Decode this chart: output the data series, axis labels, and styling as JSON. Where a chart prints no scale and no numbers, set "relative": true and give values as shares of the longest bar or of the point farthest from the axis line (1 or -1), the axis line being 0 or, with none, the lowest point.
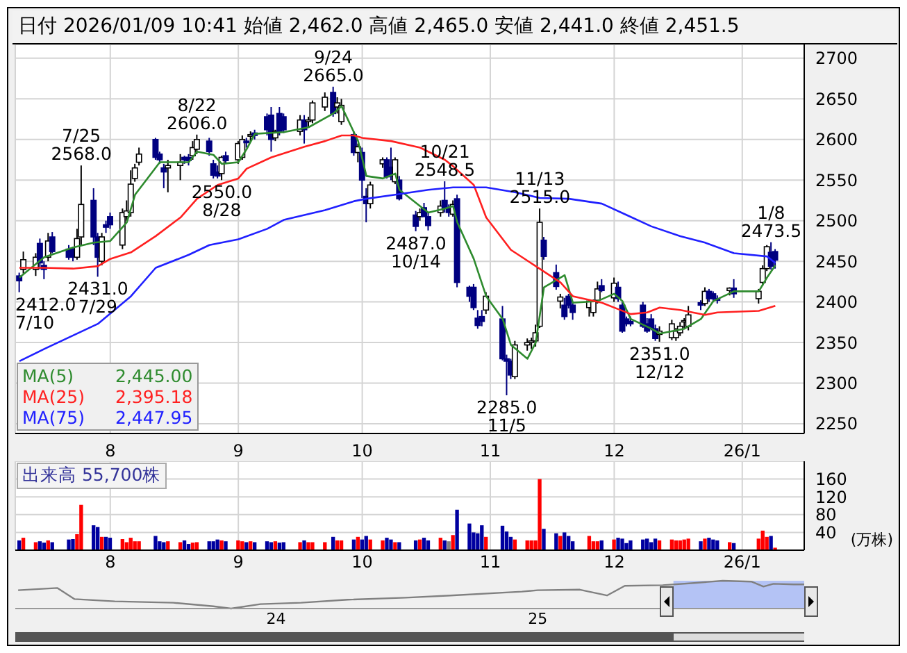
{
  "chart_data": [
    {
      "type": "candlestick",
      "title": "日付 2026/01/09 10:41 始値 2,462.0 高値 2,465.0 安値 2,441.0 終値 2,451.5",
      "x": [
        "2025-07-10",
        "2025-07-11",
        "2025-07-14",
        "2025-07-15",
        "2025-07-16",
        "2025-07-17",
        "2025-07-18",
        "2025-07-22",
        "2025-07-23",
        "2025-07-24",
        "2025-07-25",
        "2025-07-28",
        "2025-07-29",
        "2025-07-30",
        "2025-07-31",
        "2025-08-01",
        "2025-08-04",
        "2025-08-05",
        "2025-08-06",
        "2025-08-07",
        "2025-08-08",
        "2025-08-12",
        "2025-08-13",
        "2025-08-14",
        "2025-08-15",
        "2025-08-18",
        "2025-08-19",
        "2025-08-20",
        "2025-08-21",
        "2025-08-22",
        "2025-08-25",
        "2025-08-26",
        "2025-08-27",
        "2025-08-28",
        "2025-08-29",
        "2025-09-01",
        "2025-09-02",
        "2025-09-03",
        "2025-09-04",
        "2025-09-05",
        "2025-09-08",
        "2025-09-09",
        "2025-09-10",
        "2025-09-11",
        "2025-09-12",
        "2025-09-16",
        "2025-09-17",
        "2025-09-18",
        "2025-09-19",
        "2025-09-22",
        "2025-09-24",
        "2025-09-25",
        "2025-09-26",
        "2025-09-29",
        "2025-09-30",
        "2025-10-01",
        "2025-10-02",
        "2025-10-03",
        "2025-10-06",
        "2025-10-07",
        "2025-10-08",
        "2025-10-09",
        "2025-10-10",
        "2025-10-14",
        "2025-10-15",
        "2025-10-16",
        "2025-10-17",
        "2025-10-20",
        "2025-10-21",
        "2025-10-22",
        "2025-10-23",
        "2025-10-24",
        "2025-10-27",
        "2025-10-28",
        "2025-10-29",
        "2025-10-30",
        "2025-10-31",
        "2025-11-04",
        "2025-11-05",
        "2025-11-06",
        "2025-11-07",
        "2025-11-10",
        "2025-11-11",
        "2025-11-12",
        "2025-11-13",
        "2025-11-14",
        "2025-11-17",
        "2025-11-18",
        "2025-11-19",
        "2025-11-20",
        "2025-11-21",
        "2025-11-25",
        "2025-11-26",
        "2025-11-27",
        "2025-11-28",
        "2025-12-01",
        "2025-12-02",
        "2025-12-03",
        "2025-12-04",
        "2025-12-05",
        "2025-12-08",
        "2025-12-09",
        "2025-12-10",
        "2025-12-11",
        "2025-12-12",
        "2025-12-15",
        "2025-12-16",
        "2025-12-17",
        "2025-12-18",
        "2025-12-19",
        "2025-12-22",
        "2025-12-23",
        "2025-12-24",
        "2025-12-25",
        "2025-12-26",
        "2025-12-29",
        "2025-12-30",
        "2026-01-05",
        "2026-01-06",
        "2026-01-07",
        "2026-01-08",
        "2026-01-09"
      ],
      "ohlc": [
        [
          2432,
          2436,
          2412,
          2426
        ],
        [
          2440,
          2462,
          2435,
          2452
        ],
        [
          2440,
          2460,
          2432,
          2455
        ],
        [
          2472,
          2478,
          2440,
          2448
        ],
        [
          2445,
          2450,
          2428,
          2440
        ],
        [
          2455,
          2485,
          2450,
          2475
        ],
        [
          2480,
          2486,
          2460,
          2462
        ],
        [
          2465,
          2470,
          2452,
          2455
        ],
        [
          2465,
          2468,
          2450,
          2455
        ],
        [
          2455,
          2490,
          2452,
          2478
        ],
        [
          2480,
          2568,
          2470,
          2520
        ],
        [
          2525,
          2540,
          2470,
          2480
        ],
        [
          2480,
          2485,
          2431,
          2455
        ],
        [
          2450,
          2485,
          2445,
          2480
        ],
        [
          2495,
          2500,
          2485,
          2492
        ],
        [
          2505,
          2510,
          2490,
          2495
        ],
        [
          2470,
          2515,
          2465,
          2510
        ],
        [
          2505,
          2525,
          2500,
          2512
        ],
        [
          2510,
          2562,
          2505,
          2545
        ],
        [
          2552,
          2570,
          2548,
          2565
        ],
        [
          2572,
          2590,
          2568,
          2582
        ],
        [
          2600,
          2602,
          2575,
          2578
        ],
        [
          2582,
          2585,
          2570,
          2575
        ],
        [
          2565,
          2570,
          2540,
          2560
        ],
        [
          2565,
          2575,
          2535,
          2568
        ],
        [
          2568,
          2582,
          2550,
          2572
        ],
        [
          2578,
          2580,
          2570,
          2575
        ],
        [
          2578,
          2582,
          2568,
          2574
        ],
        [
          2580,
          2598,
          2575,
          2590
        ],
        [
          2588,
          2606,
          2582,
          2600
        ],
        [
          2598,
          2602,
          2580,
          2585
        ],
        [
          2570,
          2575,
          2552,
          2556
        ],
        [
          2560,
          2568,
          2552,
          2555
        ],
        [
          2558,
          2580,
          2550,
          2578
        ],
        [
          2580,
          2585,
          2570,
          2574
        ],
        [
          2575,
          2598,
          2570,
          2595
        ],
        [
          2578,
          2605,
          2575,
          2600
        ],
        [
          2598,
          2602,
          2590,
          2596
        ],
        [
          2604,
          2610,
          2598,
          2606
        ],
        [
          2608,
          2612,
          2600,
          2605
        ],
        [
          2628,
          2632,
          2605,
          2612
        ],
        [
          2630,
          2640,
          2585,
          2600
        ],
        [
          2602,
          2612,
          2598,
          2610
        ],
        [
          2632,
          2640,
          2605,
          2610
        ],
        [
          2628,
          2632,
          2608,
          2612
        ],
        [
          2610,
          2630,
          2605,
          2624
        ],
        [
          2624,
          2630,
          2595,
          2612
        ],
        [
          2622,
          2628,
          2615,
          2624
        ],
        [
          2624,
          2648,
          2620,
          2645
        ],
        [
          2640,
          2658,
          2635,
          2652
        ],
        [
          2658,
          2665,
          2628,
          2632
        ],
        [
          2640,
          2652,
          2632,
          2645
        ],
        [
          2622,
          2650,
          2618,
          2642
        ],
        [
          2606,
          2610,
          2580,
          2584
        ],
        [
          2584,
          2595,
          2572,
          2591
        ],
        [
          2584,
          2590,
          2528,
          2550
        ],
        [
          2530,
          2540,
          2498,
          2521
        ],
        [
          2521,
          2548,
          2515,
          2544
        ],
        [
          2570,
          2578,
          2565,
          2575
        ],
        [
          2575,
          2578,
          2552,
          2554
        ],
        [
          2566,
          2590,
          2550,
          2555
        ],
        [
          2548,
          2578,
          2545,
          2575
        ],
        [
          2550,
          2555,
          2525,
          2527
        ],
        [
          2507,
          2512,
          2487,
          2493
        ],
        [
          2505,
          2515,
          2500,
          2510
        ],
        [
          2516,
          2522,
          2505,
          2505
        ],
        [
          2505,
          2510,
          2488,
          2494
        ],
        [
          2510,
          2525,
          2505,
          2518
        ],
        [
          2525,
          2548.5,
          2510,
          2515
        ],
        [
          2515,
          2520,
          2505,
          2510
        ],
        [
          2508,
          2525,
          2505,
          2520
        ],
        [
          2527,
          2532,
          2418,
          2424
        ],
        [
          2418,
          2420,
          2400,
          2407
        ],
        [
          2418,
          2422,
          2390,
          2393
        ],
        [
          2380,
          2390,
          2367,
          2371
        ],
        [
          2382,
          2390,
          2370,
          2376
        ],
        [
          2390,
          2412,
          2385,
          2407
        ],
        [
          2379,
          2395,
          2328,
          2330
        ],
        [
          2330,
          2335,
          2285,
          2327
        ],
        [
          2327,
          2330,
          2305,
          2310
        ],
        [
          2308,
          2352,
          2305,
          2347
        ],
        [
          2347,
          2355,
          2340,
          2350
        ],
        [
          2350,
          2356,
          2342,
          2352
        ],
        [
          2352,
          2372,
          2345,
          2362
        ],
        [
          2370,
          2515,
          2368,
          2498
        ],
        [
          2476,
          2480,
          2452,
          2456
        ],
        [
          2436,
          2446,
          2415,
          2419
        ],
        [
          2401,
          2410,
          2392,
          2406
        ],
        [
          2396,
          2405,
          2378,
          2382
        ],
        [
          2407,
          2410,
          2392,
          2396
        ],
        [
          2396,
          2400,
          2378,
          2387
        ],
        [
          2393,
          2403,
          2382,
          2401
        ],
        [
          2387,
          2403,
          2382,
          2401
        ],
        [
          2402,
          2425,
          2398,
          2416
        ],
        [
          2420,
          2428,
          2412,
          2414
        ],
        [
          2405,
          2430,
          2400,
          2423
        ],
        [
          2418,
          2425,
          2400,
          2404
        ],
        [
          2396,
          2400,
          2362,
          2364
        ],
        [
          2379,
          2382,
          2370,
          2373
        ],
        [
          2376,
          2382,
          2370,
          2373
        ],
        [
          2396,
          2400,
          2368,
          2370
        ],
        [
          2373,
          2380,
          2362,
          2364
        ],
        [
          2379,
          2385,
          2365,
          2367
        ],
        [
          2367,
          2372,
          2352,
          2355
        ],
        [
          2360,
          2370,
          2351,
          2364
        ],
        [
          2356,
          2378,
          2353,
          2373
        ],
        [
          2356,
          2368,
          2352,
          2364
        ],
        [
          2362,
          2375,
          2358,
          2370
        ],
        [
          2376,
          2380,
          2368,
          2377
        ],
        [
          2370,
          2395,
          2365,
          2384
        ],
        [
          2399,
          2402,
          2390,
          2396
        ],
        [
          2398,
          2418,
          2395,
          2413
        ],
        [
          2413,
          2416,
          2400,
          2404
        ],
        [
          2410,
          2413,
          2400,
          2404
        ],
        [
          2404,
          2408,
          2398,
          2402
        ],
        [
          2414,
          2418,
          2408,
          2417
        ],
        [
          2417,
          2428,
          2405,
          2410
        ],
        [
          2404,
          2416,
          2398,
          2413
        ],
        [
          2424,
          2445,
          2420,
          2441
        ],
        [
          2441,
          2470,
          2438,
          2468
        ],
        [
          2461,
          2473.5,
          2440,
          2444
        ],
        [
          2462,
          2465,
          2441,
          2451.5
        ]
      ],
      "colors": [
        "#000080",
        "#ffffff",
        "#ffffff",
        "#000080",
        "#000080",
        "#ffffff",
        "#000080",
        "#000080",
        "#000080",
        "#ffffff",
        "#ffffff",
        "#000080",
        "#000080",
        "#ffffff",
        "#000080",
        "#000080",
        "#ffffff",
        "#ffffff",
        "#ffffff",
        "#ffffff",
        "#ffffff",
        "#000080",
        "#000080",
        "#000080",
        "#ffffff",
        "#ffffff",
        "#000080",
        "#000080",
        "#ffffff",
        "#ffffff",
        "#000080",
        "#000080",
        "#000080",
        "#ffffff",
        "#000080",
        "#ffffff",
        "#ffffff",
        "#000080",
        "#ffffff",
        "#000080",
        "#000080",
        "#000080",
        "#ffffff",
        "#000080",
        "#000080",
        "#ffffff",
        "#000080",
        "#ffffff",
        "#ffffff",
        "#ffffff",
        "#000080",
        "#ffffff",
        "#ffffff",
        "#000080",
        "#ffffff",
        "#000080",
        "#000080",
        "#ffffff",
        "#ffffff",
        "#000080",
        "#000080",
        "#ffffff",
        "#000080",
        "#000080",
        "#ffffff",
        "#000080",
        "#000080",
        "#ffffff",
        "#000080",
        "#000080",
        "#ffffff",
        "#000080",
        "#000080",
        "#000080",
        "#000080",
        "#000080",
        "#ffffff",
        "#000080",
        "#000080",
        "#000080",
        "#ffffff",
        "#ffffff",
        "#ffffff",
        "#ffffff",
        "#ffffff",
        "#000080",
        "#000080",
        "#ffffff",
        "#000080",
        "#000080",
        "#000080",
        "#ffffff",
        "#ffffff",
        "#ffffff",
        "#000080",
        "#ffffff",
        "#000080",
        "#000080",
        "#000080",
        "#000080",
        "#000080",
        "#000080",
        "#000080",
        "#000080",
        "#ffffff",
        "#ffffff",
        "#ffffff",
        "#ffffff",
        "#ffffff",
        "#ffffff",
        "#000080",
        "#ffffff",
        "#000080",
        "#000080",
        "#000080",
        "#ffffff",
        "#000080",
        "#ffffff",
        "#ffffff",
        "#ffffff",
        "#000080",
        "#000080"
      ],
      "series": [
        {
          "type": "line",
          "name": "MA(5)",
          "color": "#2e8b2e",
          "x": [
            "2025-07-10",
            "2025-07-16",
            "2025-07-23",
            "2025-07-28",
            "2025-08-01",
            "2025-08-05",
            "2025-08-07",
            "2025-08-13",
            "2025-08-20",
            "2025-08-22",
            "2025-08-26",
            "2025-08-28",
            "2025-09-01",
            "2025-09-03",
            "2025-09-05",
            "2025-09-12",
            "2025-09-18",
            "2025-09-24",
            "2025-09-26",
            "2025-09-30",
            "2025-10-02",
            "2025-10-06",
            "2025-10-09",
            "2025-10-10",
            "2025-10-15",
            "2025-10-17",
            "2025-10-21",
            "2025-10-23",
            "2025-10-24",
            "2025-10-28",
            "2025-10-31",
            "2025-11-04",
            "2025-11-06",
            "2025-11-10",
            "2025-11-12",
            "2025-11-14",
            "2025-11-19",
            "2025-11-21",
            "2025-11-27",
            "2025-12-01",
            "2025-12-03",
            "2025-12-05",
            "2025-12-10",
            "2025-12-12",
            "2025-12-18",
            "2025-12-22",
            "2025-12-25",
            "2025-12-30",
            "2026-01-05",
            "2026-01-07",
            "2026-01-09"
          ],
          "values": [
            2430,
            2455,
            2467,
            2473,
            2475,
            2498,
            2532,
            2572,
            2572,
            2585,
            2581,
            2570,
            2572,
            2588,
            2607,
            2609,
            2615,
            2632,
            2641,
            2598,
            2555,
            2552,
            2558,
            2538,
            2518,
            2510,
            2515,
            2518,
            2498,
            2453,
            2407,
            2379,
            2347,
            2330,
            2350,
            2418,
            2433,
            2399,
            2401,
            2410,
            2401,
            2379,
            2367,
            2361,
            2367,
            2379,
            2401,
            2413,
            2413,
            2430,
            2445.0
          ]
        },
        {
          "type": "line",
          "name": "MA(25)",
          "color": "#ff2020",
          "x": [
            "2025-07-10",
            "2025-07-16",
            "2025-07-23",
            "2025-07-29",
            "2025-08-01",
            "2025-08-06",
            "2025-08-12",
            "2025-08-18",
            "2025-08-22",
            "2025-08-27",
            "2025-09-01",
            "2025-09-03",
            "2025-09-09",
            "2025-09-17",
            "2025-09-22",
            "2025-09-26",
            "2025-09-29",
            "2025-10-01",
            "2025-10-08",
            "2025-10-15",
            "2025-10-21",
            "2025-10-23",
            "2025-10-28",
            "2025-10-31",
            "2025-11-06",
            "2025-11-12",
            "2025-11-18",
            "2025-11-21",
            "2025-11-28",
            "2025-12-02",
            "2025-12-05",
            "2025-12-09",
            "2025-12-12",
            "2025-12-17",
            "2025-12-23",
            "2025-12-26",
            "2026-01-05",
            "2026-01-09"
          ],
          "values": [
            2442,
            2442,
            2441,
            2444,
            2453,
            2461,
            2481,
            2504,
            2527,
            2544,
            2552,
            2564,
            2578,
            2591,
            2598,
            2605,
            2605,
            2602,
            2598,
            2590,
            2575,
            2567,
            2544,
            2504,
            2464,
            2444,
            2424,
            2407,
            2399,
            2391,
            2385,
            2387,
            2393,
            2390,
            2384,
            2387,
            2389,
            2395.18
          ]
        },
        {
          "type": "line",
          "name": "MA(75)",
          "color": "#2020ff",
          "x": [
            "2025-07-10",
            "2025-07-16",
            "2025-07-29",
            "2025-08-06",
            "2025-08-12",
            "2025-08-20",
            "2025-08-25",
            "2025-09-01",
            "2025-09-08",
            "2025-09-12",
            "2025-09-22",
            "2025-09-29",
            "2025-10-02",
            "2025-10-09",
            "2025-10-17",
            "2025-10-23",
            "2025-10-24",
            "2025-10-31",
            "2025-11-07",
            "2025-11-13",
            "2025-11-20",
            "2025-11-28",
            "2025-12-04",
            "2025-12-10",
            "2025-12-17",
            "2025-12-23",
            "2025-12-30",
            "2026-01-07",
            "2026-01-09"
          ],
          "values": [
            2327,
            2342,
            2373,
            2407,
            2442,
            2458,
            2470,
            2477,
            2490,
            2501,
            2513,
            2524,
            2527,
            2532,
            2538,
            2541,
            2541,
            2541,
            2535,
            2528,
            2527,
            2521,
            2507,
            2493,
            2481,
            2473,
            2460,
            2456,
            2447.95
          ]
        }
      ],
      "annotations": [
        "2,445.00",
        "2,395.18",
        "2,447.95",
        {
          "text": "7/25\n2568.0",
          "x": "2025-07-25",
          "y": 2568
        },
        {
          "text": "8/22\n2606.0",
          "x": "2025-08-22",
          "y": 2606
        },
        {
          "text": "9/24\n2665.0",
          "x": "2025-09-24",
          "y": 2665
        },
        {
          "text": "10/21\n2548.5",
          "x": "2025-10-21",
          "y": 2548.5
        },
        {
          "text": "11/13\n2515.0",
          "x": "2025-11-13",
          "y": 2515
        },
        {
          "text": "1/8\n2473.5",
          "x": "2026-01-08",
          "y": 2473.5
        },
        {
          "text": "2412.0\n7/10",
          "x": "2025-07-10",
          "y": 2412
        },
        {
          "text": "2431.0\n7/29",
          "x": "2025-07-29",
          "y": 2431
        },
        {
          "text": "2550.0\n8/28",
          "x": "2025-08-28",
          "y": 2550
        },
        {
          "text": "2487.0\n10/14",
          "x": "2025-10-14",
          "y": 2487
        },
        {
          "text": "2285.0\n11/5",
          "x": "2025-11-05",
          "y": 2285
        },
        {
          "text": "2351.0\n12/12",
          "x": "2025-12-12",
          "y": 2351
        }
      ],
      "xlim": [
        "2025-07-09",
        "2026-01-16"
      ],
      "xticks": [
        {
          "value": "2025-08-01",
          "label": "8"
        },
        {
          "value": "2025-09-01",
          "label": "9"
        },
        {
          "value": "2025-10-01",
          "label": "10"
        },
        {
          "value": "2025-11-01",
          "label": "11"
        },
        {
          "value": "2025-12-01",
          "label": "12"
        },
        {
          "value": "2026-01-01",
          "label": "26/1"
        }
      ],
      "ylim": [
        2238,
        2717
      ],
      "yticks": [
        2250,
        2300,
        2350,
        2400,
        2450,
        2500,
        2550,
        2600,
        2650,
        2700
      ],
      "grid": true,
      "legend": "bottom left"
    },
    {
      "type": "bar",
      "title": "出来高 55,700株",
      "ylabel": "(万株)",
      "x": [
        "2025-07-10",
        "2025-07-11",
        "2025-07-14",
        "2025-07-15",
        "2025-07-16",
        "2025-07-17",
        "2025-07-18",
        "2025-07-22",
        "2025-07-23",
        "2025-07-24",
        "2025-07-25",
        "2025-07-28",
        "2025-07-29",
        "2025-07-30",
        "2025-07-31",
        "2025-08-01",
        "2025-08-04",
        "2025-08-05",
        "2025-08-06",
        "2025-08-07",
        "2025-08-08",
        "2025-08-12",
        "2025-08-13",
        "2025-08-14",
        "2025-08-15",
        "2025-08-18",
        "2025-08-19",
        "2025-08-20",
        "2025-08-21",
        "2025-08-22",
        "2025-08-25",
        "2025-08-26",
        "2025-08-27",
        "2025-08-28",
        "2025-08-29",
        "2025-09-01",
        "2025-09-02",
        "2025-09-03",
        "2025-09-04",
        "2025-09-05",
        "2025-09-08",
        "2025-09-09",
        "2025-09-10",
        "2025-09-11",
        "2025-09-12",
        "2025-09-16",
        "2025-09-17",
        "2025-09-18",
        "2025-09-19",
        "2025-09-22",
        "2025-09-24",
        "2025-09-25",
        "2025-09-26",
        "2025-09-29",
        "2025-09-30",
        "2025-10-01",
        "2025-10-02",
        "2025-10-03",
        "2025-10-06",
        "2025-10-07",
        "2025-10-08",
        "2025-10-09",
        "2025-10-10",
        "2025-10-14",
        "2025-10-15",
        "2025-10-16",
        "2025-10-17",
        "2025-10-20",
        "2025-10-21",
        "2025-10-22",
        "2025-10-23",
        "2025-10-24",
        "2025-10-27",
        "2025-10-28",
        "2025-10-29",
        "2025-10-30",
        "2025-10-31",
        "2025-11-04",
        "2025-11-05",
        "2025-11-06",
        "2025-11-07",
        "2025-11-10",
        "2025-11-11",
        "2025-11-12",
        "2025-11-13",
        "2025-11-14",
        "2025-11-17",
        "2025-11-18",
        "2025-11-19",
        "2025-11-20",
        "2025-11-21",
        "2025-11-25",
        "2025-11-26",
        "2025-11-27",
        "2025-11-28",
        "2025-12-01",
        "2025-12-02",
        "2025-12-03",
        "2025-12-04",
        "2025-12-05",
        "2025-12-08",
        "2025-12-09",
        "2025-12-10",
        "2025-12-11",
        "2025-12-12",
        "2025-12-15",
        "2025-12-16",
        "2025-12-17",
        "2025-12-18",
        "2025-12-19",
        "2025-12-22",
        "2025-12-23",
        "2025-12-24",
        "2025-12-25",
        "2025-12-26",
        "2025-12-29",
        "2025-12-30",
        "2026-01-05",
        "2026-01-06",
        "2026-01-07",
        "2026-01-08",
        "2026-01-09"
      ],
      "values": [
        22,
        28,
        18,
        20,
        17,
        22,
        18,
        24,
        25,
        36,
        102,
        56,
        52,
        30,
        30,
        28,
        25,
        18,
        28,
        20,
        20,
        32,
        20,
        18,
        20,
        18,
        22,
        14,
        17,
        18,
        20,
        20,
        24,
        22,
        20,
        22,
        20,
        18,
        20,
        18,
        20,
        18,
        20,
        17,
        18,
        18,
        22,
        18,
        18,
        18,
        30,
        22,
        22,
        24,
        30,
        24,
        32,
        24,
        22,
        28,
        24,
        18,
        18,
        22,
        24,
        28,
        22,
        28,
        22,
        20,
        34,
        91,
        60,
        40,
        38,
        56,
        30,
        55,
        42,
        30,
        24,
        22,
        22,
        22,
        160,
        48,
        38,
        32,
        40,
        32,
        20,
        32,
        20,
        20,
        22,
        24,
        28,
        26,
        16,
        22,
        24,
        26,
        18,
        26,
        22,
        24,
        22,
        22,
        24,
        26,
        20,
        26,
        28,
        24,
        22,
        18,
        16,
        26,
        44,
        30,
        32,
        5.57
      ],
      "colors": [
        "#0000a0",
        "#ff0000",
        "#ff0000",
        "#0000a0",
        "#0000a0",
        "#ff0000",
        "#0000a0",
        "#0000a0",
        "#0000a0",
        "#ff0000",
        "#ff0000",
        "#0000a0",
        "#0000a0",
        "#ff0000",
        "#0000a0",
        "#0000a0",
        "#ff0000",
        "#ff0000",
        "#ff0000",
        "#ff0000",
        "#ff0000",
        "#0000a0",
        "#0000a0",
        "#0000a0",
        "#ff0000",
        "#ff0000",
        "#0000a0",
        "#0000a0",
        "#ff0000",
        "#ff0000",
        "#0000a0",
        "#0000a0",
        "#0000a0",
        "#ff0000",
        "#0000a0",
        "#ff0000",
        "#ff0000",
        "#0000a0",
        "#ff0000",
        "#0000a0",
        "#0000a0",
        "#0000a0",
        "#ff0000",
        "#0000a0",
        "#0000a0",
        "#ff0000",
        "#0000a0",
        "#ff0000",
        "#ff0000",
        "#ff0000",
        "#0000a0",
        "#ff0000",
        "#ff0000",
        "#0000a0",
        "#ff0000",
        "#0000a0",
        "#0000a0",
        "#ff0000",
        "#ff0000",
        "#0000a0",
        "#0000a0",
        "#ff0000",
        "#0000a0",
        "#0000a0",
        "#ff0000",
        "#0000a0",
        "#0000a0",
        "#ff0000",
        "#0000a0",
        "#808080",
        "#ff0000",
        "#0000a0",
        "#0000a0",
        "#0000a0",
        "#0000a0",
        "#0000a0",
        "#ff0000",
        "#0000a0",
        "#0000a0",
        "#0000a0",
        "#ff0000",
        "#ff0000",
        "#ff0000",
        "#ff0000",
        "#ff0000",
        "#0000a0",
        "#0000a0",
        "#ff0000",
        "#0000a0",
        "#0000a0",
        "#0000a0",
        "#ff0000",
        "#ff0000",
        "#ff0000",
        "#0000a0",
        "#ff0000",
        "#0000a0",
        "#0000a0",
        "#0000a0",
        "#0000a0",
        "#0000a0",
        "#0000a0",
        "#0000a0",
        "#0000a0",
        "#ff0000",
        "#ff0000",
        "#ff0000",
        "#ff0000",
        "#ff0000",
        "#ff0000",
        "#0000a0",
        "#ff0000",
        "#0000a0",
        "#0000a0",
        "#0000a0",
        "#ff0000",
        "#0000a0",
        "#ff0000",
        "#ff0000",
        "#ff0000",
        "#0000a0",
        "#ff0000"
      ],
      "xlim": [
        "2025-07-09",
        "2026-01-16"
      ],
      "xticks": [
        {
          "value": "2025-08-01",
          "label": "8"
        },
        {
          "value": "2025-09-01",
          "label": "9"
        },
        {
          "value": "2025-10-01",
          "label": "10"
        },
        {
          "value": "2025-11-01",
          "label": "11"
        },
        {
          "value": "2025-12-01",
          "label": "12"
        },
        {
          "value": "2026-01-01",
          "label": "26/1"
        }
      ],
      "ylim": [
        0,
        200
      ],
      "yticks": [
        40,
        80,
        120,
        160
      ],
      "grid": true
    },
    {
      "type": "line",
      "relative": true,
      "color": "#808080",
      "x": [
        "2023-01-05",
        "2023-03-01",
        "2023-03-25",
        "2023-05-20",
        "2023-08-10",
        "2023-10-05",
        "2023-10-30",
        "2023-12-10",
        "2024-02-05",
        "2024-04-10",
        "2024-06-30",
        "2024-09-01",
        "2024-12-10",
        "2025-01-01",
        "2025-03-01",
        "2025-04-08",
        "2025-05-03",
        "2025-06-25",
        "2025-08-08",
        "2025-09-17",
        "2025-10-27",
        "2025-11-13",
        "2025-11-27",
        "2025-12-25",
        "2026-01-09"
      ],
      "values": [
        0.66,
        0.74,
        0.34,
        0.26,
        0.21,
        0.08,
        0,
        0.16,
        0.21,
        0.32,
        0.39,
        0.47,
        0.61,
        0.66,
        0.68,
        0.47,
        0.82,
        0.84,
        0.92,
        1,
        0.97,
        0.79,
        0.89,
        0.87,
        0.87
      ],
      "xlim": [
        "2023-01-01",
        "2026-01-09"
      ],
      "xticks": [
        {
          "value": "2024-01-01",
          "label": "24"
        },
        {
          "value": "2025-01-01",
          "label": "25"
        }
      ],
      "bands": [
        {
          "axis": "x",
          "from": "2025-07-10",
          "to": "2026-01-09",
          "color": "#b4c3f5"
        }
      ]
    }
  ]
}
